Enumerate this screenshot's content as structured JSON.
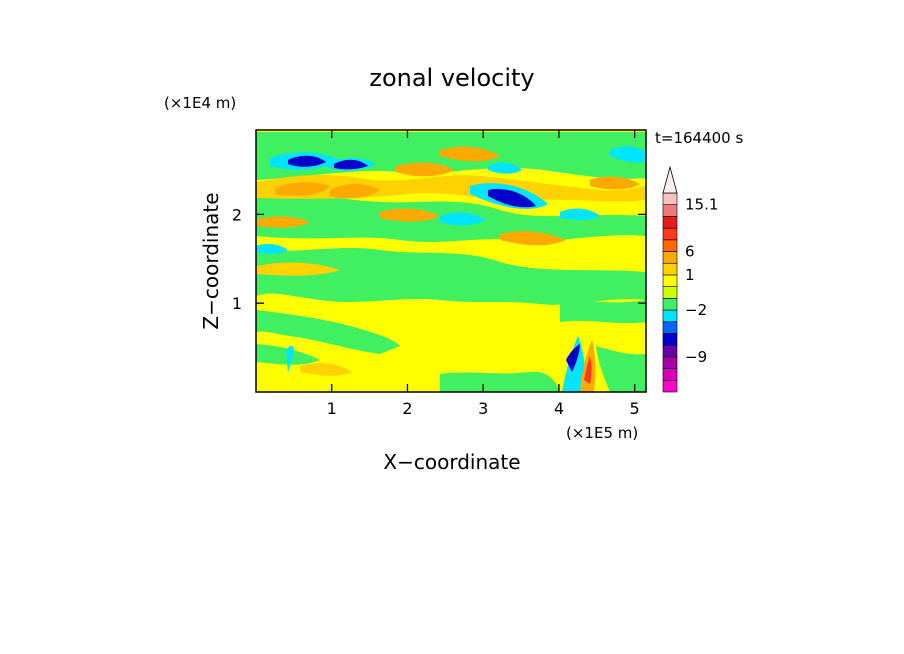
{
  "chart_data": {
    "type": "heatmap",
    "title": "zonal velocity",
    "time_label": "t=164400 s",
    "xlabel": "X−coordinate",
    "ylabel": "Z−coordinate",
    "x_unit": "(×1E5 m)",
    "y_unit": "(×1E4 m)",
    "xlim": [
      0,
      5.15
    ],
    "ylim": [
      0,
      2.95
    ],
    "x_ticks": [
      {
        "value": 1,
        "label": "1"
      },
      {
        "value": 2,
        "label": "2"
      },
      {
        "value": 3,
        "label": "3"
      },
      {
        "value": 4,
        "label": "4"
      },
      {
        "value": 5,
        "label": "5"
      }
    ],
    "y_ticks": [
      {
        "value": 1,
        "label": "1"
      },
      {
        "value": 2,
        "label": "2"
      }
    ],
    "colorbar": {
      "levels": [
        {
          "color": "#ff00cc"
        },
        {
          "color": "#d800b4"
        },
        {
          "color": "#a800a8"
        },
        {
          "color": "#6600aa"
        },
        {
          "color": "#0000cc"
        },
        {
          "color": "#0066ff"
        },
        {
          "color": "#00e5ff"
        },
        {
          "color": "#40f060"
        },
        {
          "color": "#ccff00"
        },
        {
          "color": "#ffff00"
        },
        {
          "color": "#ffd200"
        },
        {
          "color": "#ffaa00"
        },
        {
          "color": "#ff6a00"
        },
        {
          "color": "#ff3a1a"
        },
        {
          "color": "#e81a1a"
        },
        {
          "color": "#f07878"
        },
        {
          "color": "#f8c0c0"
        },
        {
          "color": "#f8f0f0"
        }
      ],
      "labels": [
        {
          "text": "15.1",
          "index": 16
        },
        {
          "text": "6",
          "index": 12
        },
        {
          "text": "1",
          "index": 10
        },
        {
          "text": "−2",
          "index": 7
        },
        {
          "text": "−9",
          "index": 3
        }
      ]
    },
    "field_colors": {
      "background": "#ffff00",
      "green": "#40f060",
      "orange": "#ffaa00",
      "light_orange": "#ffd200",
      "cyan": "#00e5ff",
      "blue": "#0000cc",
      "light_blue": "#0066ff",
      "red": "#ff3a1a"
    }
  }
}
